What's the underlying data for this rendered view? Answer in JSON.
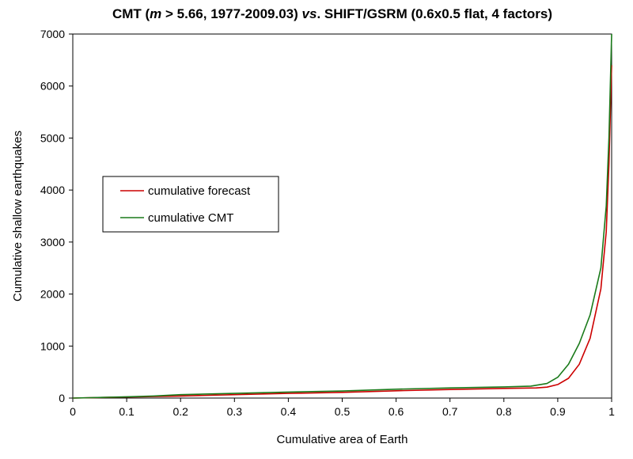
{
  "chart_data": {
    "type": "line",
    "title_parts": [
      {
        "text": "CMT (",
        "italic": false
      },
      {
        "text": "m",
        "italic": true
      },
      {
        "text": " > 5.66, 1977-2009.03) ",
        "italic": false
      },
      {
        "text": "vs",
        "italic": true
      },
      {
        "text": ". SHIFT/GSRM (0.6x0.5 flat, 4 factors)",
        "italic": false
      }
    ],
    "xlabel": "Cumulative area of Earth",
    "ylabel": "Cumulative shallow earthquakes",
    "xlim": [
      0,
      1
    ],
    "ylim": [
      0,
      7000
    ],
    "xticks": [
      "0",
      "0.1",
      "0.2",
      "0.3",
      "0.4",
      "0.5",
      "0.6",
      "0.7",
      "0.8",
      "0.9",
      "1"
    ],
    "yticks": [
      "0",
      "1000",
      "2000",
      "3000",
      "4000",
      "5000",
      "6000",
      "7000"
    ],
    "grid": false,
    "legend_position": "middle-left",
    "series": [
      {
        "name": "cumulative forecast",
        "color": "#cc0000",
        "points": [
          [
            0,
            0
          ],
          [
            0.1,
            20
          ],
          [
            0.2,
            40
          ],
          [
            0.3,
            65
          ],
          [
            0.4,
            90
          ],
          [
            0.5,
            110
          ],
          [
            0.6,
            140
          ],
          [
            0.7,
            165
          ],
          [
            0.8,
            185
          ],
          [
            0.86,
            195
          ],
          [
            0.88,
            210
          ],
          [
            0.9,
            260
          ],
          [
            0.92,
            380
          ],
          [
            0.94,
            650
          ],
          [
            0.96,
            1150
          ],
          [
            0.98,
            2100
          ],
          [
            0.99,
            3200
          ],
          [
            0.995,
            4500
          ],
          [
            1,
            6400
          ]
        ]
      },
      {
        "name": "cumulative CMT",
        "color": "#1a7a1a",
        "points": [
          [
            0,
            0
          ],
          [
            0.1,
            25
          ],
          [
            0.15,
            40
          ],
          [
            0.2,
            65
          ],
          [
            0.3,
            90
          ],
          [
            0.4,
            115
          ],
          [
            0.5,
            135
          ],
          [
            0.6,
            170
          ],
          [
            0.7,
            195
          ],
          [
            0.8,
            215
          ],
          [
            0.85,
            230
          ],
          [
            0.88,
            280
          ],
          [
            0.9,
            400
          ],
          [
            0.92,
            650
          ],
          [
            0.94,
            1050
          ],
          [
            0.96,
            1600
          ],
          [
            0.98,
            2500
          ],
          [
            0.99,
            3700
          ],
          [
            0.995,
            5000
          ],
          [
            1,
            7000
          ]
        ]
      }
    ]
  }
}
